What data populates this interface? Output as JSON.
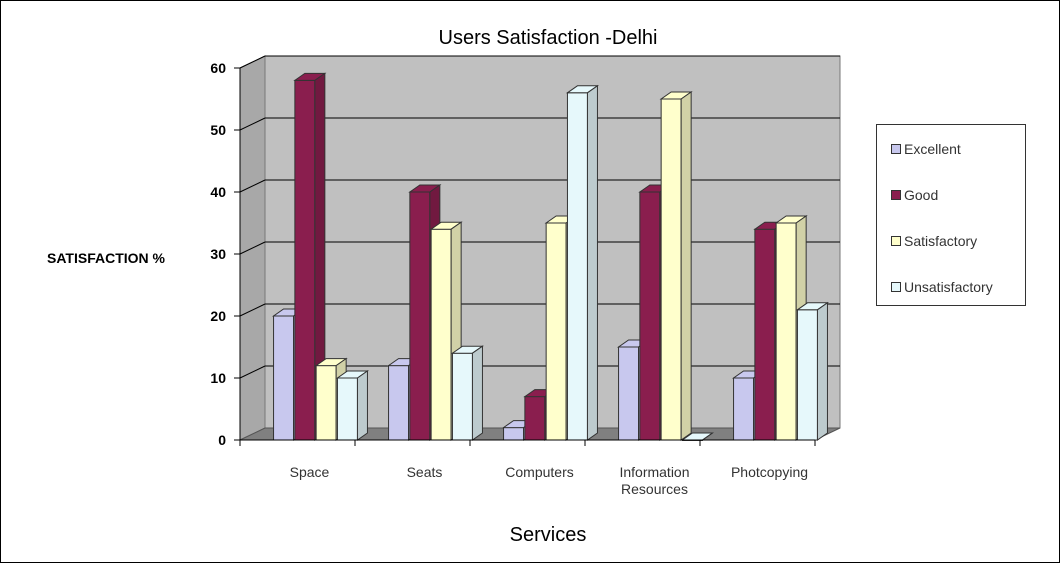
{
  "chart_data": {
    "type": "bar",
    "title": "Users Satisfaction -Delhi",
    "xlabel": "Services",
    "ylabel": "SATISFACTION %",
    "ylim": [
      0,
      60
    ],
    "yticks": [
      "0",
      "10",
      "20",
      "30",
      "40",
      "50",
      "60"
    ],
    "grid": true,
    "legend_position": "right",
    "categories": [
      "Space",
      "Seats",
      "Computers",
      "Information Resources",
      "Photcopying"
    ],
    "series": [
      {
        "name": "Excellent",
        "color": "#c8c8ee",
        "values": [
          20,
          12,
          2,
          15,
          10
        ]
      },
      {
        "name": "Good",
        "color": "#8a1e4e",
        "values": [
          58,
          40,
          7,
          40,
          34
        ]
      },
      {
        "name": "Satisfactory",
        "color": "#ffffcc",
        "values": [
          12,
          34,
          35,
          55,
          35
        ]
      },
      {
        "name": "Unsatisfactory",
        "color": "#e6f8fb",
        "values": [
          10,
          14,
          56,
          0,
          21
        ]
      }
    ]
  }
}
